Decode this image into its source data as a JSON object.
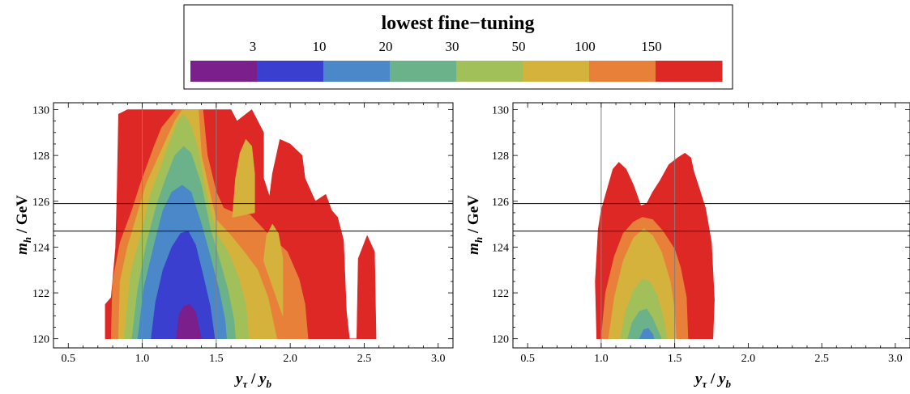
{
  "chart_data": {
    "type": "heatmap",
    "title": "lowest fine−tuning",
    "legend": {
      "thresholds": [
        "3",
        "10",
        "20",
        "30",
        "50",
        "100",
        "150"
      ],
      "colors": [
        "#7a1f8c",
        "#3b3fcf",
        "#4a88c9",
        "#6bb28a",
        "#a1c05a",
        "#d4b23c",
        "#e8803a",
        "#dd2825"
      ]
    },
    "ylabel_main": "m",
    "ylabel_sub": "h",
    "ylabel_unit": " / GeV",
    "xlabel": {
      "y": "y",
      "tau": "τ",
      "slash": " / ",
      "y2": "y",
      "b": "b"
    },
    "xlim": [
      0.4,
      3.1
    ],
    "ylim": [
      119.6,
      130.3
    ],
    "xticks": [
      "0.5",
      "1.0",
      "1.5",
      "2.0",
      "2.5",
      "3.0"
    ],
    "yticks": [
      "120",
      "122",
      "124",
      "126",
      "128",
      "130"
    ],
    "vlines": [
      1.0,
      1.5
    ],
    "hlines": [
      125.9,
      124.7
    ],
    "panels": [
      {
        "regions": [
          {
            "level": 7,
            "points": [
              [
                0.75,
                120
              ],
              [
                0.75,
                121.5
              ],
              [
                0.79,
                121.8
              ],
              [
                0.82,
                124
              ],
              [
                0.83,
                126.5
              ],
              [
                0.84,
                129.8
              ],
              [
                0.9,
                130
              ],
              [
                1.33,
                130
              ],
              [
                1.43,
                130
              ],
              [
                1.6,
                130
              ],
              [
                1.64,
                129.5
              ],
              [
                1.74,
                130
              ],
              [
                1.82,
                129
              ],
              [
                1.82,
                127
              ],
              [
                1.86,
                126.2
              ],
              [
                1.88,
                127.2
              ],
              [
                1.93,
                128.7
              ],
              [
                2.0,
                128.5
              ],
              [
                2.08,
                128
              ],
              [
                2.1,
                127
              ],
              [
                2.17,
                126
              ],
              [
                2.24,
                126.3
              ],
              [
                2.28,
                125.6
              ],
              [
                2.32,
                125.3
              ],
              [
                2.36,
                124.3
              ],
              [
                2.38,
                121.2
              ],
              [
                2.4,
                120
              ],
              [
                2.45,
                120
              ],
              [
                2.46,
                123.5
              ],
              [
                2.52,
                124.5
              ],
              [
                2.57,
                123.8
              ],
              [
                2.58,
                120
              ]
            ]
          },
          {
            "level": 6,
            "points": [
              [
                0.79,
                120
              ],
              [
                0.8,
                122.5
              ],
              [
                0.85,
                124.2
              ],
              [
                0.93,
                125.6
              ],
              [
                0.99,
                126.8
              ],
              [
                1.08,
                128.4
              ],
              [
                1.13,
                129.2
              ],
              [
                1.23,
                130
              ],
              [
                1.3,
                130
              ],
              [
                1.41,
                130
              ],
              [
                1.44,
                128
              ],
              [
                1.5,
                126.4
              ],
              [
                1.55,
                125.7
              ],
              [
                1.62,
                125.5
              ],
              [
                1.73,
                125.4
              ],
              [
                1.86,
                124.5
              ],
              [
                1.98,
                123.8
              ],
              [
                2.06,
                122.6
              ],
              [
                2.1,
                121.5
              ],
              [
                2.12,
                120
              ]
            ]
          },
          {
            "level": 5,
            "points": [
              [
                0.84,
                120
              ],
              [
                0.85,
                122.5
              ],
              [
                0.9,
                124
              ],
              [
                0.96,
                125.3
              ],
              [
                1.03,
                126.8
              ],
              [
                1.1,
                127.8
              ],
              [
                1.17,
                128.8
              ],
              [
                1.22,
                129.5
              ],
              [
                1.27,
                130
              ],
              [
                1.3,
                130
              ],
              [
                1.38,
                130
              ],
              [
                1.4,
                128
              ],
              [
                1.47,
                126
              ],
              [
                1.5,
                125.2
              ],
              [
                1.6,
                124.5
              ],
              [
                1.7,
                123.7
              ],
              [
                1.78,
                123
              ],
              [
                1.85,
                121.8
              ],
              [
                1.91,
                120
              ]
            ]
          },
          {
            "level": 4,
            "points": [
              [
                0.88,
                120
              ],
              [
                0.92,
                122.8
              ],
              [
                1.0,
                124.8
              ],
              [
                1.05,
                126.2
              ],
              [
                1.12,
                127.4
              ],
              [
                1.18,
                128.5
              ],
              [
                1.24,
                129.5
              ],
              [
                1.28,
                129.8
              ],
              [
                1.33,
                129.3
              ],
              [
                1.38,
                128.2
              ],
              [
                1.43,
                126.4
              ],
              [
                1.5,
                124.6
              ],
              [
                1.58,
                123.8
              ],
              [
                1.65,
                122.7
              ],
              [
                1.7,
                121.5
              ],
              [
                1.72,
                120
              ]
            ]
          },
          {
            "level": 3,
            "points": [
              [
                0.93,
                120
              ],
              [
                0.97,
                122.2
              ],
              [
                1.03,
                124.2
              ],
              [
                1.1,
                125.9
              ],
              [
                1.16,
                127
              ],
              [
                1.22,
                128
              ],
              [
                1.28,
                128.4
              ],
              [
                1.33,
                128.1
              ],
              [
                1.4,
                126.7
              ],
              [
                1.46,
                124.8
              ],
              [
                1.52,
                123.5
              ],
              [
                1.58,
                122.1
              ],
              [
                1.62,
                120.8
              ],
              [
                1.63,
                120
              ]
            ]
          },
          {
            "level": 2,
            "points": [
              [
                0.97,
                120
              ],
              [
                1.01,
                122.2
              ],
              [
                1.08,
                124.1
              ],
              [
                1.14,
                125.6
              ],
              [
                1.2,
                126.4
              ],
              [
                1.27,
                126.7
              ],
              [
                1.33,
                126.4
              ],
              [
                1.4,
                125
              ],
              [
                1.46,
                123.6
              ],
              [
                1.52,
                122.1
              ],
              [
                1.56,
                120.8
              ],
              [
                1.57,
                120
              ]
            ]
          },
          {
            "level": 1,
            "points": [
              [
                1.06,
                120
              ],
              [
                1.09,
                121.6
              ],
              [
                1.14,
                123
              ],
              [
                1.2,
                124
              ],
              [
                1.26,
                124.6
              ],
              [
                1.31,
                124.7
              ],
              [
                1.36,
                124.1
              ],
              [
                1.41,
                122.8
              ],
              [
                1.46,
                121.4
              ],
              [
                1.49,
                120
              ]
            ]
          },
          {
            "level": 0,
            "points": [
              [
                1.23,
                120
              ],
              [
                1.25,
                121.1
              ],
              [
                1.28,
                121.4
              ],
              [
                1.32,
                121.5
              ],
              [
                1.36,
                121.2
              ],
              [
                1.38,
                120.6
              ],
              [
                1.4,
                120
              ]
            ]
          },
          {
            "level": 5,
            "points": [
              [
                1.61,
                125.3
              ],
              [
                1.63,
                127
              ],
              [
                1.66,
                128.1
              ],
              [
                1.7,
                128.7
              ],
              [
                1.74,
                128.4
              ],
              [
                1.76,
                127.2
              ],
              [
                1.76,
                125.5
              ]
            ]
          },
          {
            "level": 5,
            "points": [
              [
                1.82,
                123.4
              ],
              [
                1.84,
                124.5
              ],
              [
                1.88,
                125
              ],
              [
                1.92,
                124.6
              ],
              [
                1.95,
                123.5
              ],
              [
                1.95,
                121
              ]
            ]
          }
        ]
      },
      {
        "regions": [
          {
            "level": 7,
            "points": [
              [
                0.97,
                120
              ],
              [
                0.96,
                122.5
              ],
              [
                0.98,
                124.8
              ],
              [
                1.0,
                125.6
              ],
              [
                1.04,
                126.5
              ],
              [
                1.08,
                127.4
              ],
              [
                1.12,
                127.7
              ],
              [
                1.17,
                127.4
              ],
              [
                1.22,
                126.7
              ],
              [
                1.27,
                125.8
              ],
              [
                1.31,
                125.9
              ],
              [
                1.35,
                126.4
              ],
              [
                1.4,
                126.9
              ],
              [
                1.46,
                127.6
              ],
              [
                1.52,
                127.9
              ],
              [
                1.57,
                128.1
              ],
              [
                1.61,
                127.9
              ],
              [
                1.63,
                127.3
              ],
              [
                1.67,
                126.5
              ],
              [
                1.71,
                125.7
              ],
              [
                1.75,
                124.2
              ],
              [
                1.77,
                121.7
              ],
              [
                1.76,
                120
              ]
            ]
          },
          {
            "level": 6,
            "points": [
              [
                1.0,
                120
              ],
              [
                1.03,
                122
              ],
              [
                1.09,
                123.6
              ],
              [
                1.15,
                124.6
              ],
              [
                1.22,
                125.1
              ],
              [
                1.28,
                125.3
              ],
              [
                1.35,
                125.2
              ],
              [
                1.42,
                124.7
              ],
              [
                1.5,
                123.9
              ],
              [
                1.54,
                123.1
              ],
              [
                1.58,
                121.8
              ],
              [
                1.59,
                120
              ]
            ]
          },
          {
            "level": 5,
            "points": [
              [
                1.05,
                120
              ],
              [
                1.09,
                121.8
              ],
              [
                1.15,
                123.4
              ],
              [
                1.22,
                124.4
              ],
              [
                1.29,
                124.8
              ],
              [
                1.35,
                124.5
              ],
              [
                1.41,
                123.8
              ],
              [
                1.47,
                122.5
              ],
              [
                1.5,
                121.2
              ],
              [
                1.51,
                120
              ]
            ]
          },
          {
            "level": 4,
            "points": [
              [
                1.13,
                120
              ],
              [
                1.17,
                121.3
              ],
              [
                1.22,
                122.1
              ],
              [
                1.28,
                122.6
              ],
              [
                1.33,
                122.5
              ],
              [
                1.38,
                121.9
              ],
              [
                1.42,
                121
              ],
              [
                1.45,
                120
              ]
            ]
          },
          {
            "level": 3,
            "points": [
              [
                1.18,
                120
              ],
              [
                1.21,
                120.7
              ],
              [
                1.26,
                121.2
              ],
              [
                1.31,
                121.3
              ],
              [
                1.35,
                120.9
              ],
              [
                1.39,
                120.3
              ],
              [
                1.41,
                120
              ]
            ]
          },
          {
            "level": 2,
            "points": [
              [
                1.26,
                120
              ],
              [
                1.29,
                120.4
              ],
              [
                1.32,
                120.45
              ],
              [
                1.35,
                120.2
              ],
              [
                1.36,
                120
              ]
            ]
          }
        ]
      }
    ]
  }
}
